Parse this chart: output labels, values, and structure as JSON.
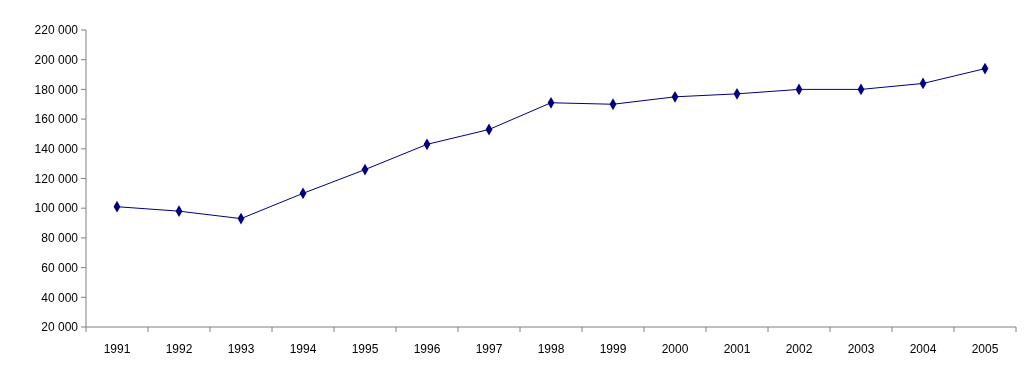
{
  "chart_data": {
    "type": "line",
    "categories": [
      "1991",
      "1992",
      "1993",
      "1994",
      "1995",
      "1996",
      "1997",
      "1998",
      "1999",
      "2000",
      "2001",
      "2002",
      "2003",
      "2004",
      "2005"
    ],
    "series": [
      {
        "color": "#000080",
        "values": [
          101000,
          98000,
          93000,
          110000,
          126000,
          143000,
          153000,
          171000,
          170000,
          175000,
          177000,
          180000,
          180000,
          184000,
          194000
        ]
      }
    ],
    "ylim": [
      20000,
      220000
    ],
    "yticks": [
      {
        "value": 20000,
        "label": "20 000"
      },
      {
        "value": 40000,
        "label": "40 000"
      },
      {
        "value": 60000,
        "label": "60 000"
      },
      {
        "value": 80000,
        "label": "80 000"
      },
      {
        "value": 100000,
        "label": "100 000"
      },
      {
        "value": 120000,
        "label": "120 000"
      },
      {
        "value": 140000,
        "label": "140 000"
      },
      {
        "value": 160000,
        "label": "160 000"
      },
      {
        "value": 180000,
        "label": "180 000"
      },
      {
        "value": 200000,
        "label": "200 000"
      },
      {
        "value": 220000,
        "label": "220 000"
      }
    ],
    "marker": "diamond",
    "line_style": "solid"
  }
}
